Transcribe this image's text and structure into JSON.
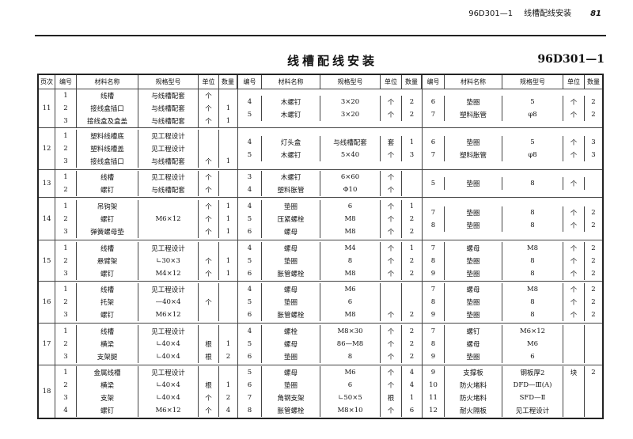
{
  "running_header": {
    "code": "96D301—1",
    "section": "线槽配线安装",
    "page": "81"
  },
  "title": "线槽配线安装",
  "doc_code": "96D301—1",
  "columns": {
    "page": "页次",
    "no": "编号",
    "name": "材料名称",
    "spec": "规格型号",
    "unit": "单位",
    "qty": "数量"
  },
  "groups": [
    {
      "page": "11",
      "sections": [
        [
          [
            "1",
            "线槽",
            "与线槽配套",
            "个",
            ""
          ],
          [
            "2",
            "接线盒插口",
            "与线槽配套",
            "个",
            "1"
          ],
          [
            "3",
            "接线盒及盒盖",
            "与线槽配套",
            "个",
            "1"
          ]
        ],
        [
          [
            "4",
            "木螺钉",
            "3×20",
            "个",
            "2"
          ],
          [
            "5",
            "木螺钉",
            "3×20",
            "个",
            "2"
          ]
        ],
        [
          [
            "6",
            "垫圈",
            "5",
            "个",
            "2"
          ],
          [
            "7",
            "塑料胀管",
            "φ8",
            "个",
            "2"
          ]
        ]
      ]
    },
    {
      "page": "12",
      "sections": [
        [
          [
            "1",
            "塑料线槽底",
            "见工程设计",
            "",
            ""
          ],
          [
            "2",
            "塑料线槽盖",
            "见工程设计",
            "",
            ""
          ],
          [
            "3",
            "接线盒插口",
            "与线槽配套",
            "个",
            "1"
          ]
        ],
        [
          [
            "4",
            "灯头盒",
            "与线槽配套",
            "套",
            "1"
          ],
          [
            "5",
            "木螺钉",
            "5×40",
            "个",
            "3"
          ]
        ],
        [
          [
            "6",
            "垫圈",
            "5",
            "个",
            "3"
          ],
          [
            "7",
            "塑料胀管",
            "φ8",
            "个",
            "3"
          ]
        ]
      ]
    },
    {
      "page": "13",
      "sections": [
        [
          [
            "1",
            "线槽",
            "见工程设计",
            "个",
            ""
          ],
          [
            "2",
            "螺钉",
            "与线槽配套",
            "个",
            ""
          ]
        ],
        [
          [
            "3",
            "木螺钉",
            "6×60",
            "个",
            ""
          ],
          [
            "4",
            "塑料胀管",
            "Φ10",
            "个",
            ""
          ]
        ],
        [
          [
            "5",
            "垫圈",
            "8",
            "个",
            ""
          ]
        ]
      ]
    },
    {
      "page": "14",
      "sections": [
        [
          [
            "1",
            "吊钩架",
            "",
            "个",
            "1"
          ],
          [
            "2",
            "螺钉",
            "M6×12",
            "个",
            "1"
          ],
          [
            "3",
            "弹簧螺母垫",
            "",
            "个",
            "1"
          ]
        ],
        [
          [
            "4",
            "垫圈",
            "6",
            "个",
            "1"
          ],
          [
            "5",
            "压紧螺栓",
            "M8",
            "个",
            "2"
          ],
          [
            "6",
            "螺母",
            "M8",
            "个",
            "2"
          ]
        ],
        [
          [
            "7",
            "垫圈",
            "8",
            "个",
            "2"
          ],
          [
            "8",
            "垫圈",
            "8",
            "个",
            "2"
          ]
        ]
      ]
    },
    {
      "page": "15",
      "sections": [
        [
          [
            "1",
            "线槽",
            "见工程设计",
            "",
            ""
          ],
          [
            "2",
            "悬臂架",
            "∟30×3",
            "个",
            "1"
          ],
          [
            "3",
            "螺钉",
            "M4×12",
            "个",
            "1"
          ]
        ],
        [
          [
            "4",
            "螺母",
            "M4",
            "个",
            "1"
          ],
          [
            "5",
            "垫圈",
            "8",
            "个",
            "2"
          ],
          [
            "6",
            "胀管螺栓",
            "M8",
            "个",
            "2"
          ]
        ],
        [
          [
            "7",
            "螺母",
            "M8",
            "个",
            "2"
          ],
          [
            "8",
            "垫圈",
            "8",
            "个",
            "2"
          ],
          [
            "9",
            "垫圈",
            "8",
            "个",
            "2"
          ]
        ]
      ]
    },
    {
      "page": "16",
      "sections": [
        [
          [
            "1",
            "线槽",
            "见工程设计",
            "",
            ""
          ],
          [
            "2",
            "托架",
            "—40×4",
            "个",
            ""
          ],
          [
            "3",
            "螺钉",
            "M6×12",
            "",
            ""
          ]
        ],
        [
          [
            "4",
            "螺母",
            "M6",
            "",
            ""
          ],
          [
            "5",
            "垫圈",
            "6",
            "",
            ""
          ],
          [
            "6",
            "胀管螺栓",
            "M8",
            "个",
            "2"
          ]
        ],
        [
          [
            "7",
            "螺母",
            "M8",
            "个",
            "2"
          ],
          [
            "8",
            "垫圈",
            "8",
            "个",
            "2"
          ],
          [
            "9",
            "垫圈",
            "8",
            "个",
            "2"
          ]
        ]
      ]
    },
    {
      "page": "17",
      "sections": [
        [
          [
            "1",
            "线槽",
            "见工程设计",
            "",
            ""
          ],
          [
            "2",
            "横梁",
            "∟40×4",
            "根",
            "1"
          ],
          [
            "3",
            "支架腿",
            "∟40×4",
            "根",
            "2"
          ]
        ],
        [
          [
            "4",
            "螺栓",
            "M8×30",
            "个",
            "2"
          ],
          [
            "5",
            "螺母",
            "86—M8",
            "个",
            "2"
          ],
          [
            "6",
            "垫圈",
            "8",
            "个",
            "2"
          ]
        ],
        [
          [
            "7",
            "螺钉",
            "M6×12",
            "",
            ""
          ],
          [
            "8",
            "螺母",
            "M6",
            "",
            ""
          ],
          [
            "9",
            "垫圈",
            "6",
            "",
            ""
          ]
        ]
      ]
    },
    {
      "page": "18",
      "sections": [
        [
          [
            "1",
            "金属线槽",
            "见工程设计",
            "",
            ""
          ],
          [
            "2",
            "横梁",
            "∟40×4",
            "根",
            "1"
          ],
          [
            "3",
            "支架",
            "∟40×4",
            "个",
            "2"
          ],
          [
            "4",
            "螺钉",
            "M6×12",
            "个",
            "4"
          ]
        ],
        [
          [
            "5",
            "螺母",
            "M6",
            "个",
            "4"
          ],
          [
            "6",
            "垫圈",
            "6",
            "个",
            "4"
          ],
          [
            "7",
            "角钢支架",
            "∟50×5",
            "根",
            "1"
          ],
          [
            "8",
            "胀管螺栓",
            "M8×10",
            "个",
            "6"
          ]
        ],
        [
          [
            "9",
            "支撑板",
            "钢板厚2",
            "块",
            "2"
          ],
          [
            "10",
            "防火堵料",
            "DFD—Ⅲ(A)",
            "",
            ""
          ],
          [
            "11",
            "防火堵料",
            "SFD—Ⅱ",
            "",
            ""
          ],
          [
            "12",
            "耐火隔板",
            "见工程设计",
            "",
            ""
          ]
        ]
      ]
    }
  ]
}
